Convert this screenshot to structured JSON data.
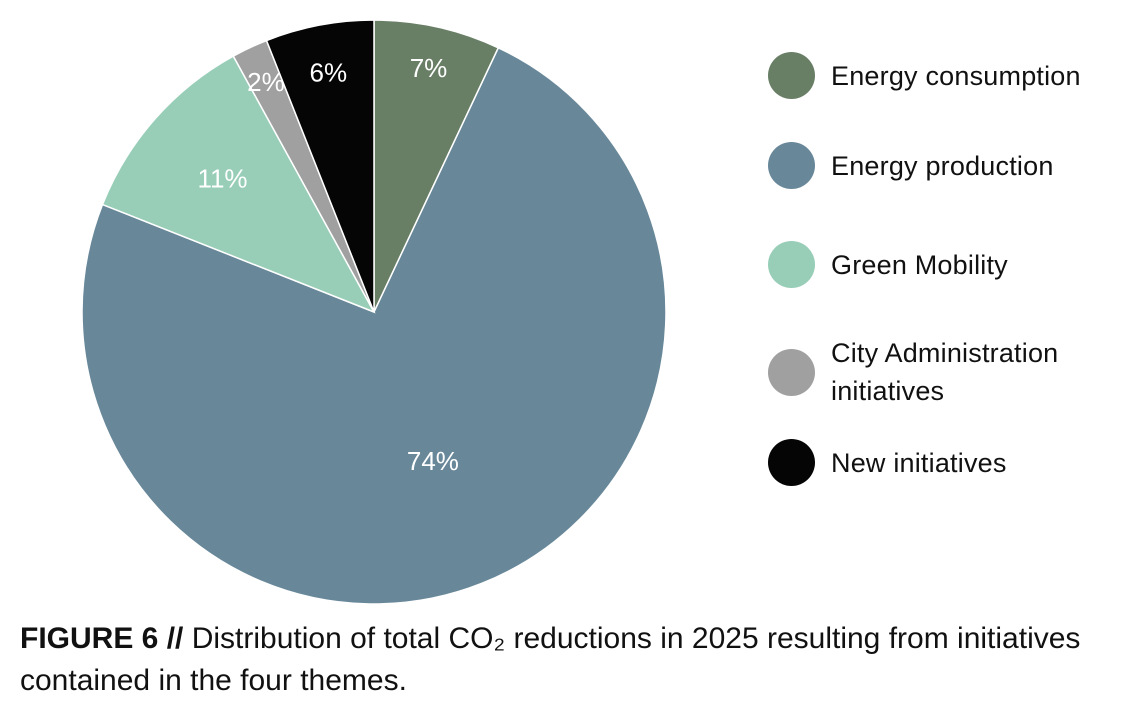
{
  "chart_data": {
    "type": "pie",
    "title": "",
    "slices": [
      {
        "label": "Energy consumption",
        "value": 7,
        "display": "7%",
        "color": "#687f66"
      },
      {
        "label": "Energy production",
        "value": 74,
        "display": "74%",
        "color": "#68889a"
      },
      {
        "label": "Green Mobility",
        "value": 11,
        "display": "11%",
        "color": "#98ceb8"
      },
      {
        "label": "City Administration initiatives",
        "value": 2,
        "display": "2%",
        "color": "#a0a0a0"
      },
      {
        "label": "New initiatives",
        "value": 6,
        "display": "6%",
        "color": "#050505"
      }
    ],
    "start": "12 o'clock",
    "direction": "clockwise",
    "legend_position": "right"
  },
  "legend": {
    "items": [
      {
        "label": "Energy consumption",
        "color": "#687f66"
      },
      {
        "label": "Energy production",
        "color": "#68889a"
      },
      {
        "label": "Green Mobility",
        "color": "#98ceb8"
      },
      {
        "label": "City Administration initiatives",
        "color": "#a0a0a0"
      },
      {
        "label": "New initiatives",
        "color": "#050505"
      }
    ]
  },
  "caption": {
    "prefix": "FIGURE 6 //",
    "text": "Distribution of total CO₂ reductions in 2025 resulting from initiatives contained in the four themes."
  }
}
